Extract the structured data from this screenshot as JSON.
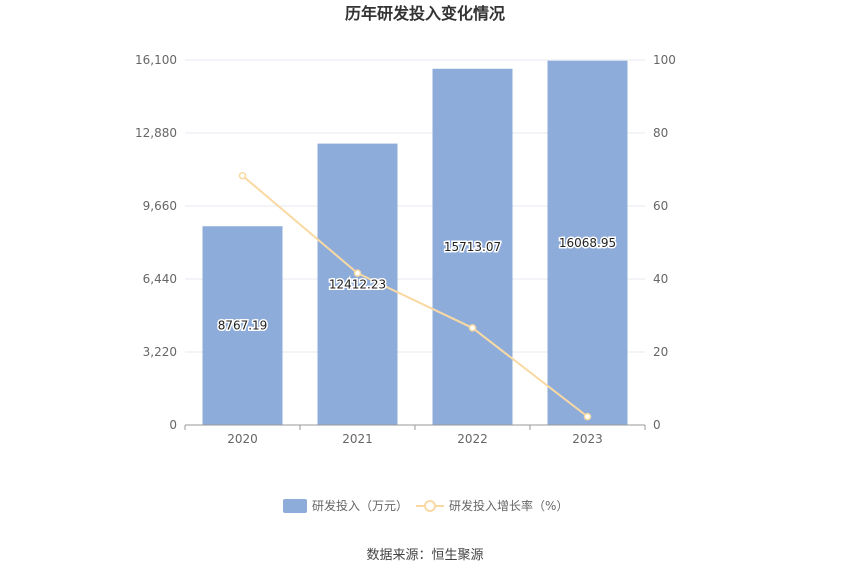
{
  "chart_data": {
    "type": "bar",
    "title": "历年研发投入变化情况",
    "categories": [
      "2020",
      "2021",
      "2022",
      "2023"
    ],
    "series": [
      {
        "name": "研发投入（万元）",
        "type": "bar",
        "axis": "left",
        "values": [
          8767.19,
          12412.23,
          15713.07,
          16068.95
        ],
        "labels": [
          "8767.19",
          "12412.23",
          "15713.07",
          "16068.95"
        ]
      },
      {
        "name": "研发投入增长率（%）",
        "type": "line",
        "axis": "right",
        "values": [
          68.3,
          41.6,
          26.6,
          2.3
        ]
      }
    ],
    "y_left": {
      "min": 0,
      "max": 16100,
      "ticks": [
        "0",
        "3,220",
        "6,440",
        "9,660",
        "12,880",
        "16,100"
      ]
    },
    "y_right": {
      "min": 0,
      "max": 100,
      "ticks": [
        "0",
        "20",
        "40",
        "60",
        "80",
        "100"
      ]
    },
    "grid": true,
    "legend": "bottom-center",
    "colors": {
      "bar": "#8eacd9",
      "line": "#f9d9a3",
      "grid": "#e6e9f0",
      "axis": "#999999"
    }
  },
  "source": "数据来源：恒生聚源"
}
